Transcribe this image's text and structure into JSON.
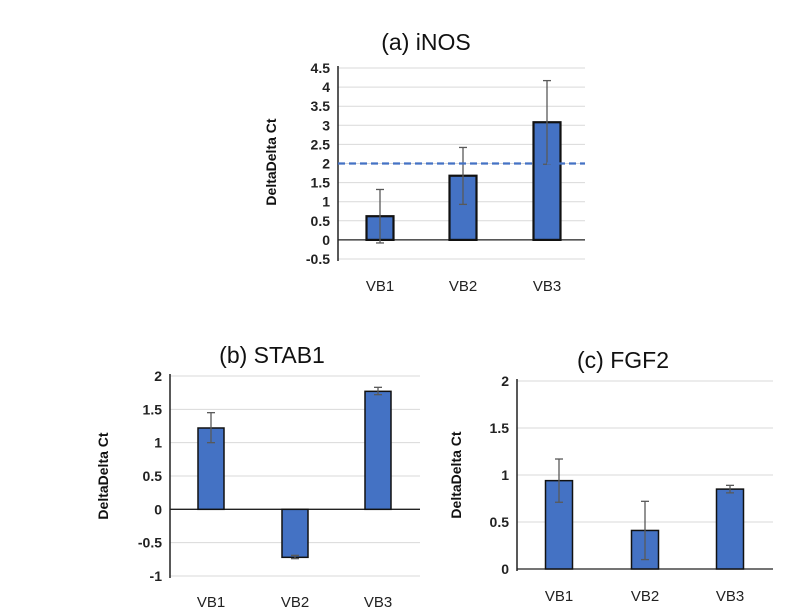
{
  "chart_data": [
    {
      "type": "bar",
      "title": "(a) iNOS",
      "ylabel": "DeltaDelta Ct",
      "xlabel": "",
      "categories": [
        "VB1",
        "VB2",
        "VB3"
      ],
      "values": [
        0.62,
        1.68,
        3.08
      ],
      "error_low": [
        -0.08,
        0.93,
        1.98
      ],
      "error_high": [
        1.32,
        2.42,
        4.17
      ],
      "ylim": [
        -0.5,
        4.5
      ],
      "yticks": [
        "-0.5",
        "0",
        "0.5",
        "1",
        "1.5",
        "2",
        "2.5",
        "3",
        "3.5",
        "4",
        "4.5"
      ],
      "reference_line": 2,
      "reference_line_color": "#4472C4",
      "grid": true,
      "bar_color": "#4472C4"
    },
    {
      "type": "bar",
      "title": "(b) STAB1",
      "ylabel": "DeltaDelta Ct",
      "xlabel": "",
      "categories": [
        "VB1",
        "VB2",
        "VB3"
      ],
      "values": [
        1.22,
        -0.72,
        1.77
      ],
      "error_low": [
        1.0,
        -0.74,
        1.72
      ],
      "error_high": [
        1.45,
        -0.69,
        1.83
      ],
      "ylim": [
        -1,
        2
      ],
      "yticks": [
        "-1",
        "-0.5",
        "0",
        "0.5",
        "1",
        "1.5",
        "2"
      ],
      "grid": true,
      "bar_color": "#4472C4"
    },
    {
      "type": "bar",
      "title": "(c) FGF2",
      "ylabel": "DeltaDelta Ct",
      "xlabel": "",
      "categories": [
        "VB1",
        "VB2",
        "VB3"
      ],
      "values": [
        0.94,
        0.41,
        0.85
      ],
      "error_low": [
        0.71,
        0.1,
        0.81
      ],
      "error_high": [
        1.17,
        0.72,
        0.89
      ],
      "ylim": [
        0,
        2
      ],
      "yticks": [
        "0",
        "0.5",
        "1",
        "1.5",
        "2"
      ],
      "grid": true,
      "bar_color": "#4472C4"
    }
  ]
}
